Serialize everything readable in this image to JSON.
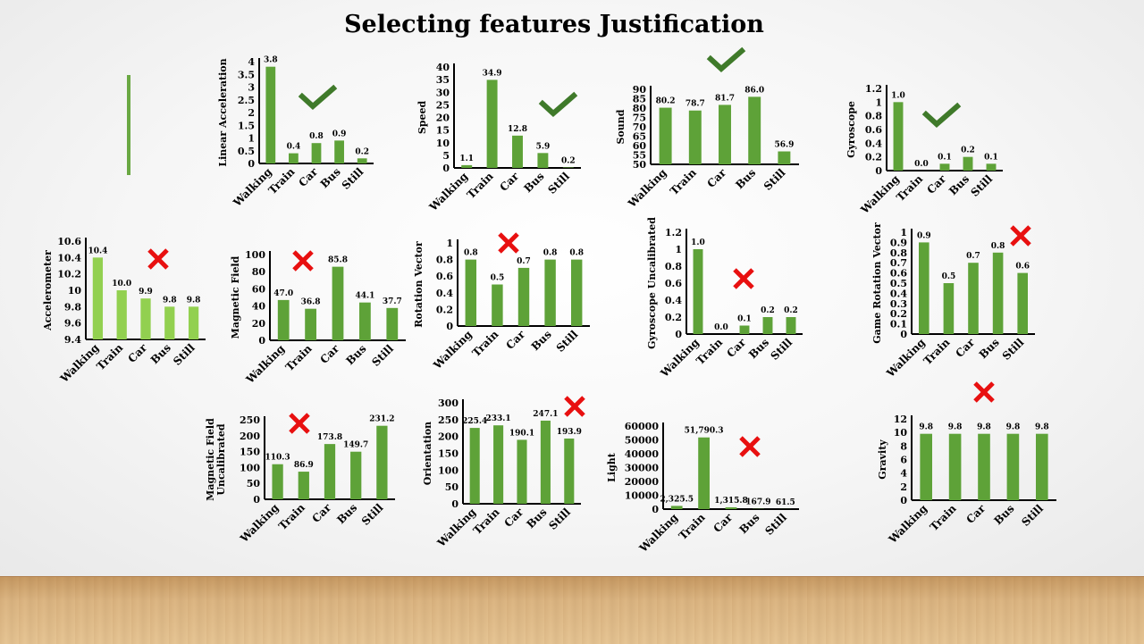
{
  "title": "Selecting features Justification",
  "colors": {
    "bar": "#5ea238",
    "bar_light": "#92d050",
    "check": "#3f7a2a",
    "cross": "#e81010",
    "axis": "#000000"
  },
  "chart_data": [
    {
      "type": "bar",
      "id": "linear_acceleration",
      "ylabel": "Linear Acceleration",
      "categories": [
        "Walking",
        "Train",
        "Car",
        "Bus",
        "Still"
      ],
      "values": [
        3.8,
        0.4,
        0.8,
        0.9,
        0.2
      ],
      "labels": [
        "3.8",
        "0.4",
        "0.8",
        "0.9",
        "0.2"
      ],
      "ylim": [
        0,
        4
      ],
      "ticks": [
        "0",
        "0.5",
        "1",
        "1.5",
        "2",
        "2.5",
        "3",
        "3.5",
        "4"
      ],
      "mark": "check"
    },
    {
      "type": "bar",
      "id": "speed",
      "ylabel": "Speed",
      "categories": [
        "Walking",
        "Train",
        "Car",
        "Bus",
        "Still"
      ],
      "values": [
        1.1,
        34.9,
        12.8,
        5.9,
        0.2
      ],
      "labels": [
        "1.1",
        "34.9",
        "12.8",
        "5.9",
        "0.2"
      ],
      "ylim": [
        0,
        40
      ],
      "ticks": [
        "0",
        "5",
        "10",
        "15",
        "20",
        "25",
        "30",
        "35",
        "40"
      ],
      "mark": "check"
    },
    {
      "type": "bar",
      "id": "sound",
      "ylabel": "Sound",
      "categories": [
        "Walking",
        "Train",
        "Car",
        "Bus",
        "Still"
      ],
      "values": [
        80.2,
        78.7,
        81.7,
        86.0,
        56.9
      ],
      "labels": [
        "80.2",
        "78.7",
        "81.7",
        "86.0",
        "56.9"
      ],
      "ylim": [
        50,
        90
      ],
      "ticks": [
        "50",
        "55",
        "60",
        "65",
        "70",
        "75",
        "80",
        "85",
        "90"
      ],
      "mark": "check"
    },
    {
      "type": "bar",
      "id": "gyroscope",
      "ylabel": "Gyroscope",
      "categories": [
        "Walking",
        "Train",
        "Car",
        "Bus",
        "Still"
      ],
      "values": [
        1.0,
        0.0,
        0.1,
        0.2,
        0.1
      ],
      "labels": [
        "1.0",
        "0.0",
        "0.1",
        "0.2",
        "0.1"
      ],
      "ylim": [
        0,
        1.2
      ],
      "ticks": [
        "0",
        "0.2",
        "0.4",
        "0.6",
        "0.8",
        "1",
        "1.2"
      ],
      "mark": "check"
    },
    {
      "type": "bar",
      "id": "accelerometer",
      "ylabel": "Accelerometer",
      "categories": [
        "Walking",
        "Train",
        "Car",
        "Bus",
        "Still"
      ],
      "values": [
        10.4,
        10.0,
        9.9,
        9.8,
        9.8
      ],
      "labels": [
        "10.4",
        "10.0",
        "9.9",
        "9.8",
        "9.8"
      ],
      "ylim": [
        9.4,
        10.6
      ],
      "ticks": [
        "9.4",
        "9.6",
        "9.8",
        "10",
        "10.2",
        "10.4",
        "10.6"
      ],
      "mark": "cross",
      "light": true
    },
    {
      "type": "bar",
      "id": "magnetic_field",
      "ylabel": "Magnetic Field",
      "categories": [
        "Walking",
        "Train",
        "Car",
        "Bus",
        "Still"
      ],
      "values": [
        47.0,
        36.8,
        85.8,
        44.1,
        37.7
      ],
      "labels": [
        "47.0",
        "36.8",
        "85.8",
        "44.1",
        "37.7"
      ],
      "ylim": [
        0,
        100
      ],
      "ticks": [
        "0",
        "20",
        "40",
        "60",
        "80",
        "100"
      ],
      "mark": "cross"
    },
    {
      "type": "bar",
      "id": "rotation_vector",
      "ylabel": "Rotation Vector",
      "categories": [
        "Walking",
        "Train",
        "Car",
        "Bus",
        "Still"
      ],
      "values": [
        0.8,
        0.5,
        0.7,
        0.8,
        0.8
      ],
      "labels": [
        "0.8",
        "0.5",
        "0.7",
        "0.8",
        "0.8"
      ],
      "ylim": [
        0,
        1
      ],
      "ticks": [
        "0",
        "0.2",
        "0.4",
        "0.6",
        "0.8",
        "1"
      ],
      "mark": "cross"
    },
    {
      "type": "bar",
      "id": "gyroscope_uncalibrated",
      "ylabel": "Gyroscope Uncalibrated",
      "categories": [
        "Walking",
        "Train",
        "Car",
        "Bus",
        "Still"
      ],
      "values": [
        1.0,
        0.0,
        0.1,
        0.2,
        0.2
      ],
      "labels": [
        "1.0",
        "0.0",
        "0.1",
        "0.2",
        "0.2"
      ],
      "ylim": [
        0,
        1.2
      ],
      "ticks": [
        "0",
        "0.2",
        "0.4",
        "0.6",
        "0.8",
        "1",
        "1.2"
      ],
      "mark": "cross"
    },
    {
      "type": "bar",
      "id": "game_rotation_vector",
      "ylabel": "Game Rotation Vector",
      "categories": [
        "Walking",
        "Train",
        "Car",
        "Bus",
        "Still"
      ],
      "values": [
        0.9,
        0.5,
        0.7,
        0.8,
        0.6
      ],
      "labels": [
        "0.9",
        "0.5",
        "0.7",
        "0.8",
        "0.6"
      ],
      "ylim": [
        0,
        1
      ],
      "ticks": [
        "0",
        "0.1",
        "0.2",
        "0.3",
        "0.4",
        "0.5",
        "0.6",
        "0.7",
        "0.8",
        "0.9",
        "1"
      ],
      "mark": "cross"
    },
    {
      "type": "bar",
      "id": "magnetic_field_uncalibrated",
      "ylabel": [
        "Magnetic Field",
        "Uncalibrated"
      ],
      "categories": [
        "Walking",
        "Train",
        "Car",
        "Bus",
        "Still"
      ],
      "values": [
        110.3,
        86.9,
        173.8,
        149.7,
        231.2
      ],
      "labels": [
        "110.3",
        "86.9",
        "173.8",
        "149.7",
        "231.2"
      ],
      "ylim": [
        0,
        250
      ],
      "ticks": [
        "0",
        "50",
        "100",
        "150",
        "200",
        "250"
      ],
      "mark": "cross"
    },
    {
      "type": "bar",
      "id": "orientation",
      "ylabel": "Orientation",
      "categories": [
        "Walking",
        "Train",
        "Car",
        "Bus",
        "Still"
      ],
      "values": [
        225.4,
        233.1,
        190.1,
        247.1,
        193.9
      ],
      "labels": [
        "225.4",
        "233.1",
        "190.1",
        "247.1",
        "193.9"
      ],
      "ylim": [
        0,
        300
      ],
      "ticks": [
        "0",
        "50",
        "100",
        "150",
        "200",
        "250",
        "300"
      ],
      "mark": "cross"
    },
    {
      "type": "bar",
      "id": "light",
      "ylabel": "Light",
      "categories": [
        "Walking",
        "Train",
        "Car",
        "Bus",
        "Still"
      ],
      "values": [
        2325.5,
        51790.3,
        1315.8,
        167.9,
        61.5
      ],
      "labels": [
        "2,325.5",
        "51,790.3",
        "1,315.8",
        "167.9",
        "61.5"
      ],
      "ylim": [
        0,
        60000
      ],
      "ticks": [
        "0",
        "10000",
        "20000",
        "30000",
        "40000",
        "50000",
        "60000"
      ],
      "mark": "cross"
    },
    {
      "type": "bar",
      "id": "gravity",
      "ylabel": "Gravity",
      "categories": [
        "Walking",
        "Train",
        "Car",
        "Bus",
        "Still"
      ],
      "values": [
        9.8,
        9.8,
        9.8,
        9.8,
        9.8
      ],
      "labels": [
        "9.8",
        "9.8",
        "9.8",
        "9.8",
        "9.8"
      ],
      "ylim": [
        0,
        12
      ],
      "ticks": [
        "0",
        "2",
        "4",
        "6",
        "8",
        "10",
        "12"
      ],
      "mark": "cross"
    }
  ]
}
